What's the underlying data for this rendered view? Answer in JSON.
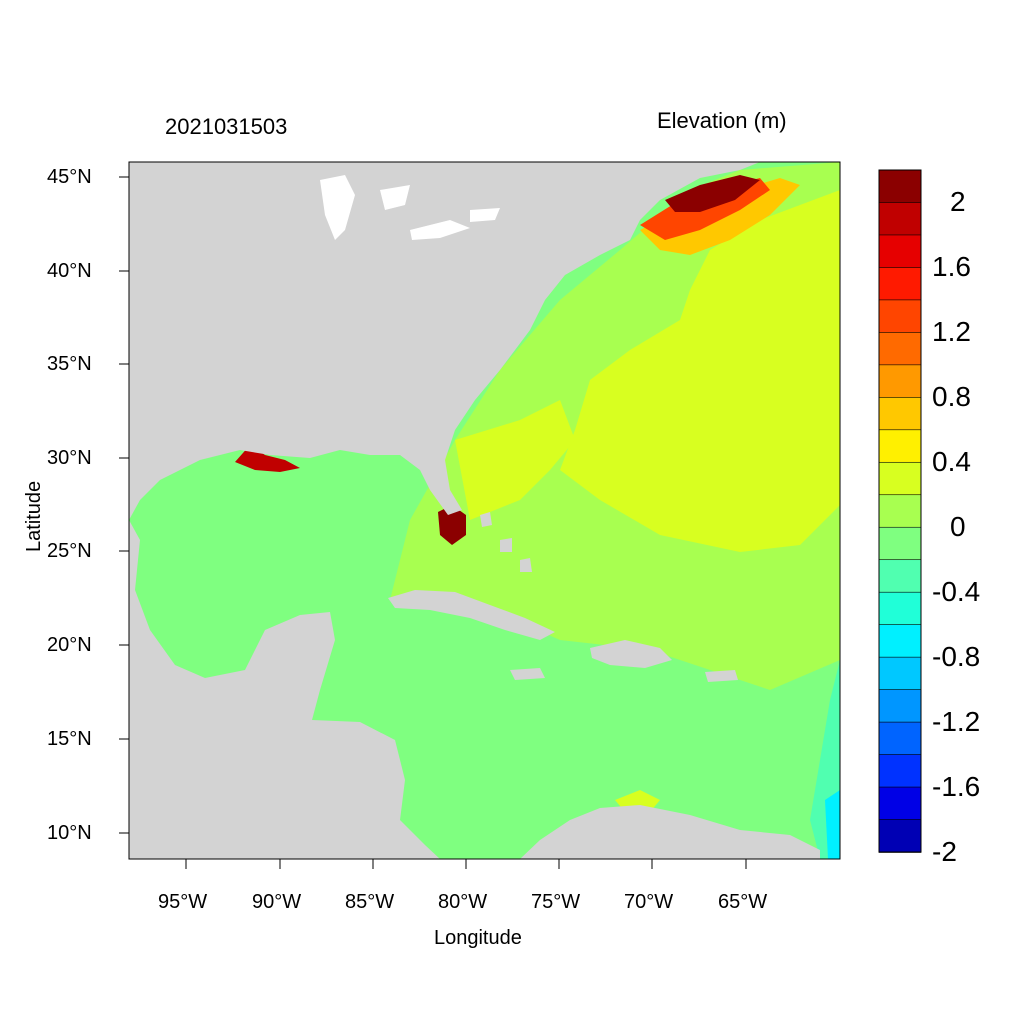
{
  "titles": {
    "left": "2021031503",
    "right": "Elevation (m)"
  },
  "axes": {
    "xlabel": "Longitude",
    "ylabel": "Latitude",
    "x_ticks": [
      "95°W",
      "90°W",
      "85°W",
      "80°W",
      "75°W",
      "70°W",
      "65°W"
    ],
    "y_ticks": [
      "45°N",
      "40°N",
      "35°N",
      "30°N",
      "25°N",
      "20°N",
      "15°N",
      "10°N"
    ]
  },
  "colorbar": {
    "labels": [
      "2",
      "1.6",
      "1.2",
      "0.8",
      "0.4",
      "0",
      "-0.4",
      "-0.8",
      "-1.2",
      "-1.6",
      "-2"
    ],
    "colors": [
      "#8b0000",
      "#c00000",
      "#e60000",
      "#ff1a00",
      "#ff4500",
      "#ff6a00",
      "#ff9900",
      "#ffc800",
      "#fff000",
      "#d8ff20",
      "#a8ff50",
      "#7fff80",
      "#50ffb0",
      "#20ffd8",
      "#00f0ff",
      "#00c8ff",
      "#0096ff",
      "#0064ff",
      "#0032ff",
      "#0000e6",
      "#0000b4"
    ]
  },
  "map": {
    "land_color": "#d3d3d3",
    "water_colors": {
      "near_zero": "#7fff80",
      "slightly_positive": "#a8ff50",
      "moderate": "#d8ff20",
      "high": "#ff1a00",
      "very_high": "#8b0000",
      "slightly_negative": "#50ffb0"
    }
  }
}
